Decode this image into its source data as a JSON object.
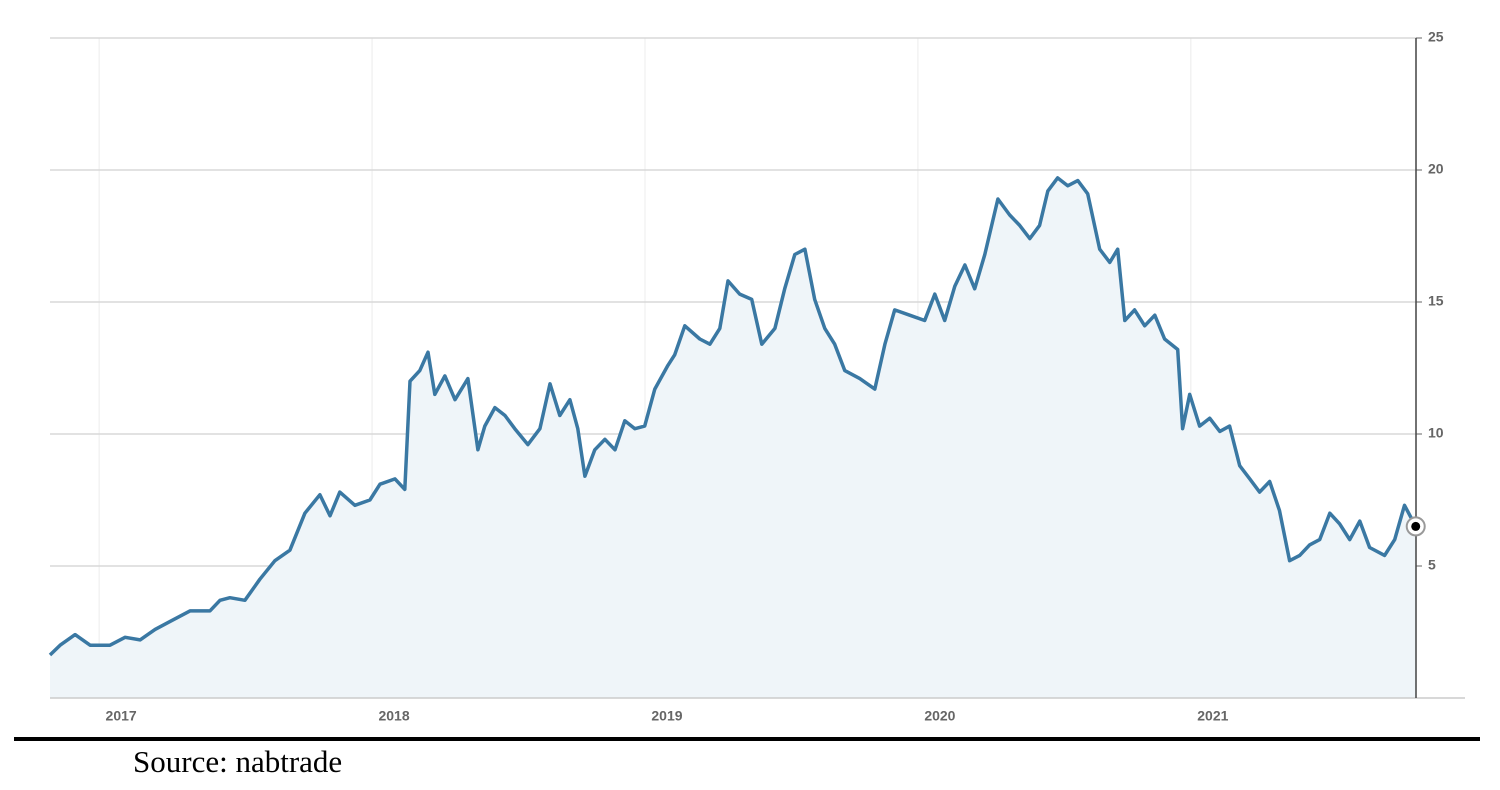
{
  "chart_data": {
    "type": "area",
    "color": "#3a78a3",
    "fill_color": "#eff5f9",
    "grid": true,
    "x": [
      2016.82,
      2016.857,
      2016.912,
      2016.967,
      2017.04,
      2017.095,
      2017.15,
      2017.205,
      2017.26,
      2017.333,
      2017.406,
      2017.443,
      2017.479,
      2017.534,
      2017.589,
      2017.644,
      2017.699,
      2017.754,
      2017.809,
      2017.846,
      2017.882,
      2017.937,
      2017.992,
      2018.029,
      2018.084,
      2018.12,
      2018.139,
      2018.175,
      2018.205,
      2018.23,
      2018.267,
      2018.304,
      2018.351,
      2018.388,
      2018.413,
      2018.45,
      2018.487,
      2018.523,
      2018.571,
      2018.615,
      2018.652,
      2018.688,
      2018.725,
      2018.754,
      2018.78,
      2018.816,
      2018.853,
      2018.89,
      2018.926,
      2018.963,
      2018.999,
      2019.036,
      2019.084,
      2019.109,
      2019.146,
      2019.201,
      2019.238,
      2019.274,
      2019.304,
      2019.347,
      2019.391,
      2019.428,
      2019.476,
      2019.512,
      2019.549,
      2019.586,
      2019.622,
      2019.659,
      2019.695,
      2019.732,
      2019.787,
      2019.842,
      2019.879,
      2019.915,
      2019.97,
      2020.025,
      2020.062,
      2020.098,
      2020.135,
      2020.172,
      2020.208,
      2020.245,
      2020.293,
      2020.336,
      2020.373,
      2020.41,
      2020.446,
      2020.476,
      2020.512,
      2020.549,
      2020.586,
      2020.622,
      2020.666,
      2020.703,
      2020.732,
      2020.758,
      2020.794,
      2020.831,
      2020.868,
      2020.904,
      2020.952,
      2020.97,
      2020.996,
      2021.032,
      2021.069,
      2021.106,
      2021.142,
      2021.179,
      2021.216,
      2021.252,
      2021.289,
      2021.325,
      2021.362,
      2021.399,
      2021.435,
      2021.472,
      2021.509,
      2021.545,
      2021.582,
      2021.619,
      2021.655,
      2021.71,
      2021.747,
      2021.783,
      2021.824
    ],
    "values": [
      1.63,
      2.0,
      2.4,
      2.0,
      2.0,
      2.3,
      2.2,
      2.6,
      2.9,
      3.3,
      3.3,
      3.7,
      3.8,
      3.7,
      4.5,
      5.2,
      5.6,
      7.0,
      7.7,
      6.9,
      7.8,
      7.3,
      7.5,
      8.1,
      8.3,
      7.9,
      12.0,
      12.4,
      13.1,
      11.5,
      12.2,
      11.3,
      12.1,
      9.4,
      10.3,
      11.0,
      10.7,
      10.2,
      9.6,
      10.2,
      11.9,
      10.7,
      11.3,
      10.2,
      8.4,
      9.4,
      9.8,
      9.4,
      10.5,
      10.2,
      10.3,
      11.7,
      12.6,
      13.0,
      14.1,
      13.6,
      13.4,
      14.0,
      15.8,
      15.3,
      15.1,
      13.4,
      14.0,
      15.5,
      16.8,
      17.0,
      15.1,
      14.0,
      13.4,
      12.4,
      12.1,
      11.7,
      13.4,
      14.7,
      14.5,
      14.3,
      15.3,
      14.3,
      15.6,
      16.4,
      15.5,
      16.8,
      18.9,
      18.3,
      17.9,
      17.4,
      17.9,
      19.2,
      19.7,
      19.4,
      19.6,
      19.1,
      17.0,
      16.5,
      17.0,
      14.3,
      14.7,
      14.1,
      14.5,
      13.6,
      13.2,
      10.2,
      11.5,
      10.3,
      10.6,
      10.1,
      10.3,
      8.8,
      8.3,
      7.8,
      8.2,
      7.1,
      5.2,
      5.4,
      5.8,
      6.0,
      7.0,
      6.6,
      6.0,
      6.7,
      5.7,
      5.4,
      6.0,
      7.3,
      6.5
    ],
    "xlim": [
      2016.82,
      2021.825
    ],
    "xticks": [
      2017,
      2018,
      2019,
      2020,
      2021
    ],
    "ylim": [
      0,
      25
    ],
    "yticks": [
      5,
      10,
      15,
      20,
      25
    ],
    "caption": "Source: nabtrade"
  }
}
